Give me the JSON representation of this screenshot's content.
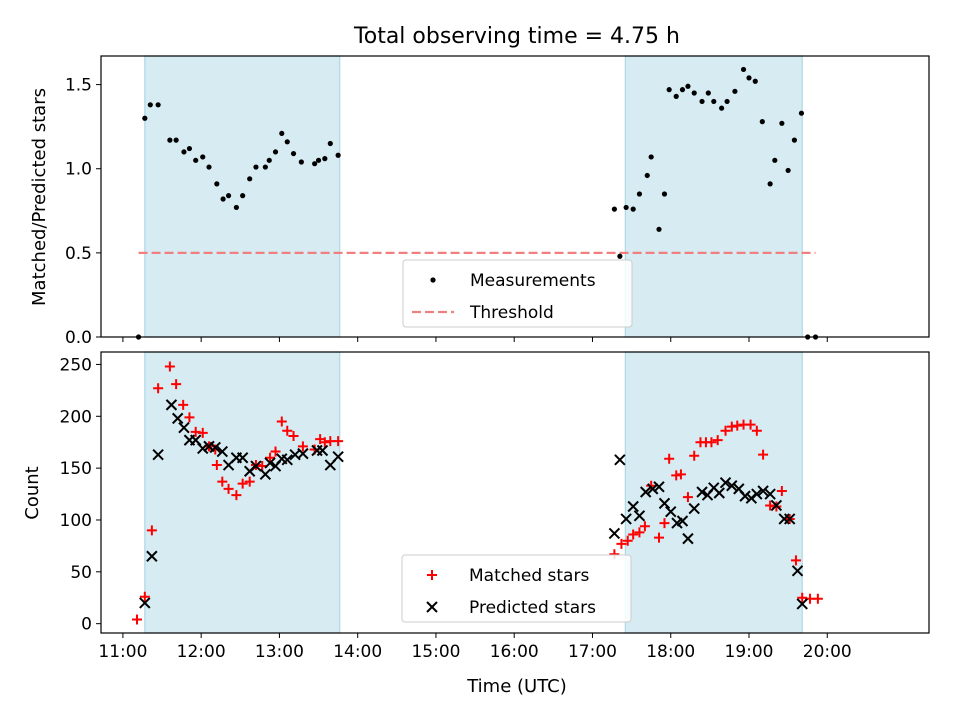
{
  "figure": {
    "title": "Total observing time = 4.75 h",
    "xlabel": "Time (UTC)",
    "xticks": [
      {
        "h": 11,
        "label": "11:00"
      },
      {
        "h": 12,
        "label": "12:00"
      },
      {
        "h": 13,
        "label": "13:00"
      },
      {
        "h": 14,
        "label": "14:00"
      },
      {
        "h": 15,
        "label": "15:00"
      },
      {
        "h": 16,
        "label": "16:00"
      },
      {
        "h": 17,
        "label": "17:00"
      },
      {
        "h": 18,
        "label": "18:00"
      },
      {
        "h": 19,
        "label": "19:00"
      },
      {
        "h": 20,
        "label": "20:00"
      }
    ],
    "xlim": [
      10.72,
      21.3
    ],
    "shaded_intervals": [
      [
        11.28,
        13.77
      ],
      [
        17.42,
        19.68
      ]
    ],
    "colors": {
      "shade": "#add8e6",
      "measurements": "#000000",
      "threshold": "#f08080",
      "matched": "#ff0000",
      "predicted": "#000000"
    }
  },
  "chart_data": [
    {
      "type": "scatter",
      "ylabel": "Matched/Predicted stars",
      "ylim": [
        0,
        1.67
      ],
      "yticks": [
        0.0,
        0.5,
        1.0,
        1.5
      ],
      "yticklabels": [
        "0.0",
        "0.5",
        "1.0",
        "1.5"
      ],
      "legend_placement": "lower center",
      "threshold": {
        "name": "Threshold",
        "y": 0.5,
        "x": [
          11.2,
          19.85
        ]
      },
      "series": [
        {
          "name": "Measurements",
          "points": [
            [
              11.2,
              0.0
            ],
            [
              11.28,
              1.3
            ],
            [
              11.35,
              1.38
            ],
            [
              11.45,
              1.38
            ],
            [
              11.6,
              1.17
            ],
            [
              11.68,
              1.17
            ],
            [
              11.78,
              1.1
            ],
            [
              11.85,
              1.12
            ],
            [
              11.93,
              1.05
            ],
            [
              12.02,
              1.07
            ],
            [
              12.1,
              1.01
            ],
            [
              12.2,
              0.91
            ],
            [
              12.28,
              0.82
            ],
            [
              12.35,
              0.84
            ],
            [
              12.45,
              0.77
            ],
            [
              12.53,
              0.84
            ],
            [
              12.62,
              0.94
            ],
            [
              12.7,
              1.01
            ],
            [
              12.82,
              1.01
            ],
            [
              12.87,
              1.05
            ],
            [
              12.95,
              1.1
            ],
            [
              13.03,
              1.21
            ],
            [
              13.1,
              1.16
            ],
            [
              13.18,
              1.09
            ],
            [
              13.28,
              1.04
            ],
            [
              13.45,
              1.03
            ],
            [
              13.5,
              1.05
            ],
            [
              13.58,
              1.06
            ],
            [
              13.65,
              1.15
            ],
            [
              13.75,
              1.08
            ],
            [
              17.28,
              0.76
            ],
            [
              17.35,
              0.48
            ],
            [
              17.43,
              0.77
            ],
            [
              17.52,
              0.76
            ],
            [
              17.6,
              0.85
            ],
            [
              17.7,
              0.96
            ],
            [
              17.75,
              1.07
            ],
            [
              17.85,
              0.64
            ],
            [
              17.92,
              0.85
            ],
            [
              17.98,
              1.47
            ],
            [
              18.07,
              1.43
            ],
            [
              18.15,
              1.47
            ],
            [
              18.22,
              1.49
            ],
            [
              18.3,
              1.45
            ],
            [
              18.4,
              1.4
            ],
            [
              18.48,
              1.45
            ],
            [
              18.55,
              1.4
            ],
            [
              18.65,
              1.36
            ],
            [
              18.72,
              1.4
            ],
            [
              18.82,
              1.46
            ],
            [
              18.93,
              1.59
            ],
            [
              19.0,
              1.54
            ],
            [
              19.08,
              1.52
            ],
            [
              19.17,
              1.28
            ],
            [
              19.27,
              0.91
            ],
            [
              19.33,
              1.05
            ],
            [
              19.42,
              1.27
            ],
            [
              19.5,
              0.99
            ],
            [
              19.58,
              1.17
            ],
            [
              19.67,
              1.33
            ],
            [
              19.75,
              0.0
            ],
            [
              19.85,
              0.0
            ]
          ]
        }
      ]
    },
    {
      "type": "scatter",
      "ylabel": "Count",
      "ylim": [
        -9,
        262
      ],
      "yticks": [
        0,
        50,
        100,
        150,
        200,
        250
      ],
      "yticklabels": [
        "0",
        "50",
        "100",
        "150",
        "200",
        "250"
      ],
      "legend_placement": "lower center",
      "series": [
        {
          "name": "Matched stars",
          "marker": "plus",
          "points": [
            [
              11.18,
              4
            ],
            [
              11.28,
              26
            ],
            [
              11.37,
              90
            ],
            [
              11.45,
              227
            ],
            [
              11.6,
              248
            ],
            [
              11.68,
              231
            ],
            [
              11.77,
              211
            ],
            [
              11.85,
              199
            ],
            [
              11.93,
              185
            ],
            [
              12.02,
              184
            ],
            [
              12.1,
              171
            ],
            [
              12.18,
              168
            ],
            [
              12.2,
              153
            ],
            [
              12.27,
              137
            ],
            [
              12.35,
              130
            ],
            [
              12.45,
              124
            ],
            [
              12.53,
              135
            ],
            [
              12.62,
              137
            ],
            [
              12.7,
              153
            ],
            [
              12.78,
              152
            ],
            [
              12.88,
              160
            ],
            [
              12.95,
              166
            ],
            [
              13.03,
              195
            ],
            [
              13.1,
              186
            ],
            [
              13.18,
              181
            ],
            [
              13.3,
              171
            ],
            [
              13.45,
              168
            ],
            [
              13.52,
              178
            ],
            [
              13.58,
              175
            ],
            [
              13.65,
              176
            ],
            [
              13.75,
              176
            ],
            [
              17.28,
              67
            ],
            [
              17.37,
              77
            ],
            [
              17.45,
              80
            ],
            [
              17.52,
              86
            ],
            [
              17.6,
              88
            ],
            [
              17.67,
              94
            ],
            [
              17.75,
              133
            ],
            [
              17.85,
              83
            ],
            [
              17.92,
              97
            ],
            [
              17.98,
              159
            ],
            [
              18.07,
              143
            ],
            [
              18.13,
              144
            ],
            [
              18.22,
              122
            ],
            [
              18.3,
              162
            ],
            [
              18.38,
              175
            ],
            [
              18.45,
              175
            ],
            [
              18.52,
              175
            ],
            [
              18.6,
              177
            ],
            [
              18.7,
              186
            ],
            [
              18.78,
              190
            ],
            [
              18.85,
              191
            ],
            [
              18.93,
              192
            ],
            [
              19.02,
              192
            ],
            [
              19.1,
              186
            ],
            [
              19.18,
              163
            ],
            [
              19.27,
              114
            ],
            [
              19.35,
              113
            ],
            [
              19.42,
              128
            ],
            [
              19.52,
              101
            ],
            [
              19.6,
              61
            ],
            [
              19.68,
              25
            ],
            [
              19.78,
              24
            ],
            [
              19.88,
              24
            ]
          ]
        },
        {
          "name": "Predicted stars",
          "marker": "x",
          "points": [
            [
              11.28,
              20
            ],
            [
              11.37,
              65
            ],
            [
              11.45,
              163
            ],
            [
              11.62,
              211
            ],
            [
              11.7,
              198
            ],
            [
              11.78,
              189
            ],
            [
              11.85,
              177
            ],
            [
              11.93,
              177
            ],
            [
              12.02,
              169
            ],
            [
              12.1,
              171
            ],
            [
              12.18,
              170
            ],
            [
              12.27,
              166
            ],
            [
              12.35,
              153
            ],
            [
              12.45,
              160
            ],
            [
              12.53,
              160
            ],
            [
              12.62,
              147
            ],
            [
              12.7,
              152
            ],
            [
              12.82,
              144
            ],
            [
              12.88,
              155
            ],
            [
              12.95,
              152
            ],
            [
              13.03,
              159
            ],
            [
              13.1,
              158
            ],
            [
              13.2,
              163
            ],
            [
              13.3,
              164
            ],
            [
              13.48,
              167
            ],
            [
              13.55,
              167
            ],
            [
              13.65,
              153
            ],
            [
              13.75,
              161
            ],
            [
              17.28,
              87
            ],
            [
              17.35,
              158
            ],
            [
              17.43,
              101
            ],
            [
              17.52,
              113
            ],
            [
              17.6,
              104
            ],
            [
              17.68,
              127
            ],
            [
              17.77,
              130
            ],
            [
              17.85,
              132
            ],
            [
              17.92,
              116
            ],
            [
              18.0,
              108
            ],
            [
              18.08,
              97
            ],
            [
              18.15,
              99
            ],
            [
              18.22,
              82
            ],
            [
              18.3,
              111
            ],
            [
              18.4,
              127
            ],
            [
              18.47,
              124
            ],
            [
              18.55,
              131
            ],
            [
              18.62,
              126
            ],
            [
              18.7,
              136
            ],
            [
              18.78,
              133
            ],
            [
              18.87,
              130
            ],
            [
              18.95,
              123
            ],
            [
              19.03,
              121
            ],
            [
              19.1,
              125
            ],
            [
              19.18,
              128
            ],
            [
              19.27,
              125
            ],
            [
              19.35,
              114
            ],
            [
              19.45,
              101
            ],
            [
              19.52,
              101
            ],
            [
              19.62,
              51
            ],
            [
              19.68,
              19
            ]
          ]
        }
      ]
    }
  ]
}
